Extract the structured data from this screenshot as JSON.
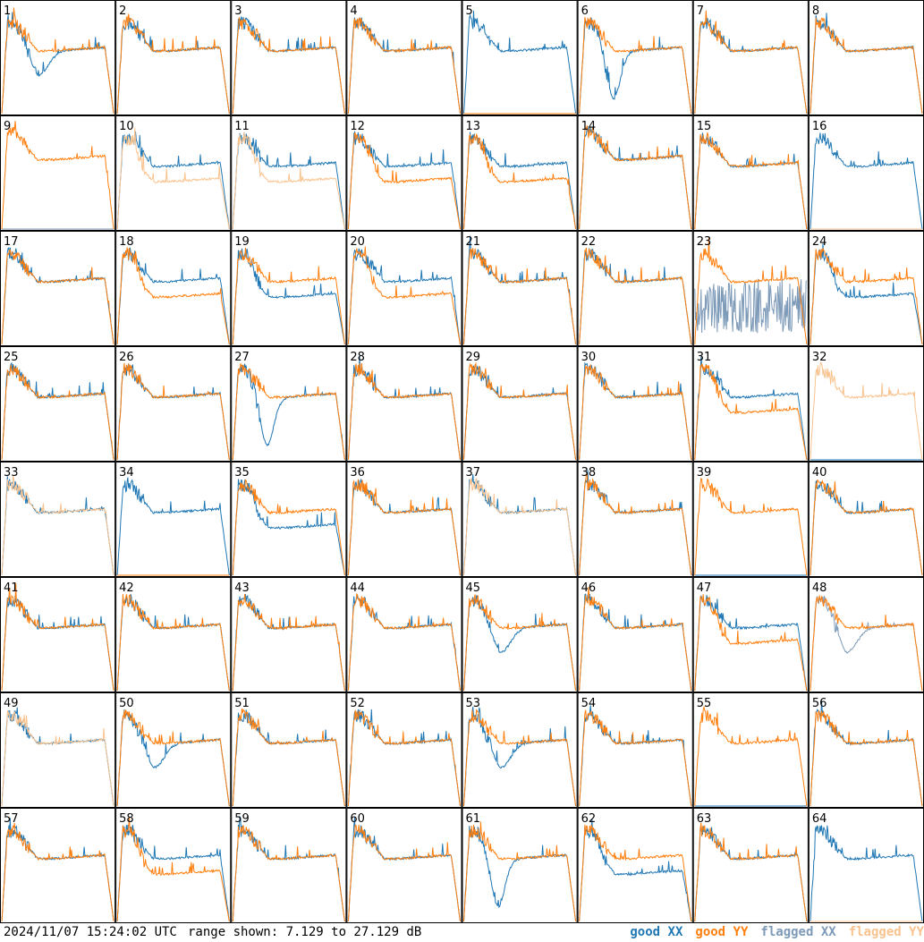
{
  "footer": {
    "timestamp": "2024/11/07 15:24:02 UTC",
    "range": "range shown: 7.129 to 27.129 dB"
  },
  "legend": {
    "good_xx": "good XX",
    "good_yy": "good YY",
    "flagged_xx": "flagged XX",
    "flagged_yy": "flagged YY"
  },
  "colors": {
    "good_xx": "#1f77b4",
    "good_yy": "#ff7f0e",
    "flagged_xx": "#7d9ab8",
    "flagged_yy": "#f9c38f"
  },
  "chart_data": {
    "type": "line",
    "grid": "8x8 small multiples",
    "ylim": [
      7.129,
      27.129
    ],
    "y_unit": "dB",
    "tiles": [
      {
        "id": "1",
        "xx": "good",
        "yy": "good",
        "shape": "dip"
      },
      {
        "id": "2",
        "xx": "good",
        "yy": "good",
        "shape": "normal"
      },
      {
        "id": "3",
        "xx": "good",
        "yy": "good",
        "shape": "normal"
      },
      {
        "id": "4",
        "xx": "good",
        "yy": "good",
        "shape": "normal"
      },
      {
        "id": "5",
        "xx": "good",
        "yy": "good",
        "shape": "xx-only"
      },
      {
        "id": "6",
        "xx": "good",
        "yy": "good",
        "shape": "deepdip"
      },
      {
        "id": "7",
        "xx": "good",
        "yy": "good",
        "shape": "normal"
      },
      {
        "id": "8",
        "xx": "good",
        "yy": "good",
        "shape": "normal"
      },
      {
        "id": "9",
        "xx": "flagged",
        "yy": "good",
        "shape": "yy-high"
      },
      {
        "id": "10",
        "xx": "good",
        "yy": "flagged",
        "shape": "split"
      },
      {
        "id": "11",
        "xx": "good",
        "yy": "flagged",
        "shape": "split"
      },
      {
        "id": "12",
        "xx": "good",
        "yy": "good",
        "shape": "split"
      },
      {
        "id": "13",
        "xx": "good",
        "yy": "good",
        "shape": "split"
      },
      {
        "id": "14",
        "xx": "good",
        "yy": "good",
        "shape": "high"
      },
      {
        "id": "15",
        "xx": "good",
        "yy": "good",
        "shape": "normal"
      },
      {
        "id": "16",
        "xx": "good",
        "yy": "flagged",
        "shape": "xx-only"
      },
      {
        "id": "17",
        "xx": "good",
        "yy": "good",
        "shape": "normal"
      },
      {
        "id": "18",
        "xx": "good",
        "yy": "good",
        "shape": "split"
      },
      {
        "id": "19",
        "xx": "good",
        "yy": "good",
        "shape": "split-low"
      },
      {
        "id": "20",
        "xx": "good",
        "yy": "good",
        "shape": "split"
      },
      {
        "id": "21",
        "xx": "good",
        "yy": "good",
        "shape": "normal"
      },
      {
        "id": "22",
        "xx": "good",
        "yy": "good",
        "shape": "normal"
      },
      {
        "id": "23",
        "xx": "flagged",
        "yy": "good",
        "shape": "noisy"
      },
      {
        "id": "24",
        "xx": "good",
        "yy": "good",
        "shape": "split-low"
      },
      {
        "id": "25",
        "xx": "good",
        "yy": "good",
        "shape": "normal"
      },
      {
        "id": "26",
        "xx": "good",
        "yy": "good",
        "shape": "normal"
      },
      {
        "id": "27",
        "xx": "good",
        "yy": "good",
        "shape": "deepdip"
      },
      {
        "id": "28",
        "xx": "good",
        "yy": "good",
        "shape": "normal"
      },
      {
        "id": "29",
        "xx": "good",
        "yy": "good",
        "shape": "normal"
      },
      {
        "id": "30",
        "xx": "good",
        "yy": "good",
        "shape": "normal"
      },
      {
        "id": "31",
        "xx": "good",
        "yy": "good",
        "shape": "split"
      },
      {
        "id": "32",
        "xx": "good",
        "yy": "flagged",
        "shape": "yy-only"
      },
      {
        "id": "33",
        "xx": "good",
        "yy": "flagged",
        "shape": "normal"
      },
      {
        "id": "34",
        "xx": "good",
        "yy": "good",
        "shape": "xx-only"
      },
      {
        "id": "35",
        "xx": "good",
        "yy": "good",
        "shape": "split-low"
      },
      {
        "id": "36",
        "xx": "good",
        "yy": "good",
        "shape": "normal"
      },
      {
        "id": "37",
        "xx": "good",
        "yy": "flagged",
        "shape": "normal"
      },
      {
        "id": "38",
        "xx": "good",
        "yy": "good",
        "shape": "normal"
      },
      {
        "id": "39",
        "xx": "good",
        "yy": "good",
        "shape": "yy-only"
      },
      {
        "id": "40",
        "xx": "good",
        "yy": "good",
        "shape": "normal"
      },
      {
        "id": "41",
        "xx": "good",
        "yy": "good",
        "shape": "normal"
      },
      {
        "id": "42",
        "xx": "good",
        "yy": "good",
        "shape": "normal"
      },
      {
        "id": "43",
        "xx": "good",
        "yy": "good",
        "shape": "normal"
      },
      {
        "id": "44",
        "xx": "good",
        "yy": "good",
        "shape": "normal"
      },
      {
        "id": "45",
        "xx": "good",
        "yy": "good",
        "shape": "dip"
      },
      {
        "id": "46",
        "xx": "good",
        "yy": "good",
        "shape": "normal"
      },
      {
        "id": "47",
        "xx": "good",
        "yy": "good",
        "shape": "split"
      },
      {
        "id": "48",
        "xx": "flagged",
        "yy": "good",
        "shape": "dip"
      },
      {
        "id": "49",
        "xx": "good",
        "yy": "flagged",
        "shape": "normal"
      },
      {
        "id": "50",
        "xx": "good",
        "yy": "good",
        "shape": "dip"
      },
      {
        "id": "51",
        "xx": "good",
        "yy": "good",
        "shape": "normal"
      },
      {
        "id": "52",
        "xx": "good",
        "yy": "good",
        "shape": "normal"
      },
      {
        "id": "53",
        "xx": "good",
        "yy": "good",
        "shape": "dip"
      },
      {
        "id": "54",
        "xx": "good",
        "yy": "good",
        "shape": "normal"
      },
      {
        "id": "55",
        "xx": "good",
        "yy": "good",
        "shape": "yy-only"
      },
      {
        "id": "56",
        "xx": "good",
        "yy": "good",
        "shape": "normal"
      },
      {
        "id": "57",
        "xx": "good",
        "yy": "good",
        "shape": "normal"
      },
      {
        "id": "58",
        "xx": "good",
        "yy": "good",
        "shape": "split"
      },
      {
        "id": "59",
        "xx": "good",
        "yy": "good",
        "shape": "normal"
      },
      {
        "id": "60",
        "xx": "good",
        "yy": "good",
        "shape": "normal"
      },
      {
        "id": "61",
        "xx": "good",
        "yy": "good",
        "shape": "deepdip"
      },
      {
        "id": "62",
        "xx": "good",
        "yy": "good",
        "shape": "split-low"
      },
      {
        "id": "63",
        "xx": "good",
        "yy": "good",
        "shape": "normal"
      },
      {
        "id": "64",
        "xx": "good",
        "yy": "flagged",
        "shape": "xx-only"
      }
    ]
  }
}
